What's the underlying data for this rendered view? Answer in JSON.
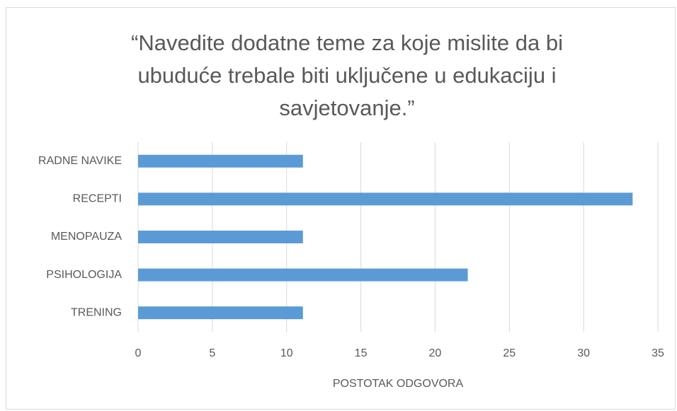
{
  "chart_data": {
    "type": "bar",
    "orientation": "horizontal",
    "title": "“Navedite dodatne teme za koje mislite da bi ubuduće trebale biti uključene u edukaciju i savjetovanje.”",
    "categories": [
      "RADNE NAVIKE",
      "RECEPTI",
      "MENOPAUZA",
      "PSIHOLOGIJA",
      "TRENING"
    ],
    "values": [
      11.1,
      33.3,
      11.1,
      22.2,
      11.1
    ],
    "color": "#5b9bd5",
    "xlabel": "POSTOTAK ODGOVORA",
    "xlim": [
      0,
      35
    ],
    "xticks": [
      0,
      5,
      10,
      15,
      20,
      25,
      30,
      35
    ],
    "grid": true
  }
}
